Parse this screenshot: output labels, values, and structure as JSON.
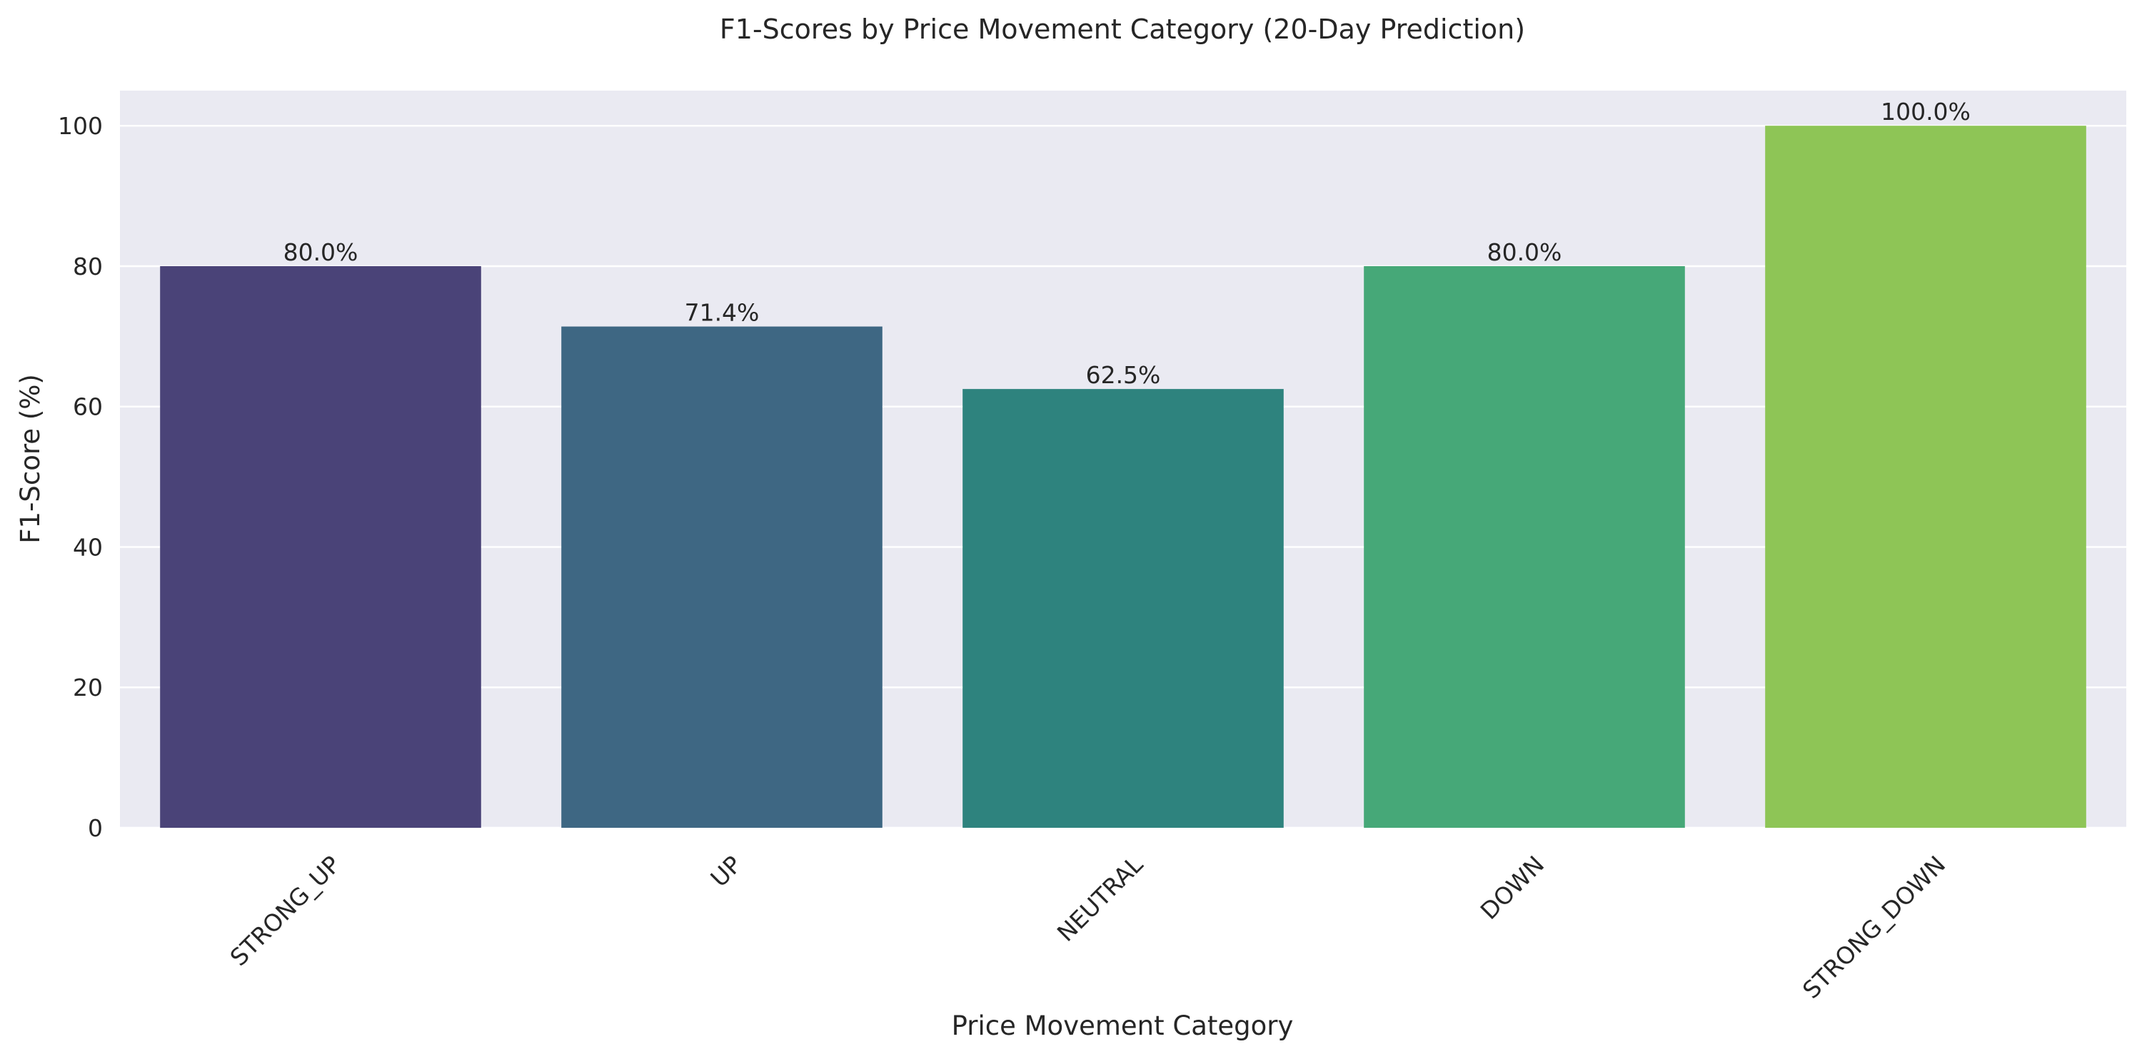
{
  "chart_data": {
    "type": "bar",
    "title": "F1-Scores by Price Movement Category (20-Day Prediction)",
    "xlabel": "Price Movement Category",
    "ylabel": "F1-Score (%)",
    "categories": [
      "STRONG_UP",
      "UP",
      "NEUTRAL",
      "DOWN",
      "STRONG_DOWN"
    ],
    "values": [
      80.0,
      71.4,
      62.5,
      80.0,
      100.0
    ],
    "value_labels": [
      "80.0%",
      "71.4%",
      "62.5%",
      "80.0%",
      "100.0%"
    ],
    "colors": [
      "#4a4378",
      "#3e6783",
      "#2e837e",
      "#46a878",
      "#8ec556"
    ],
    "ylim": [
      0,
      105
    ],
    "yticks": [
      0,
      20,
      40,
      60,
      80,
      100
    ],
    "grid": true,
    "legend": "none",
    "style": {
      "plot_background": "#eaeaf2",
      "grid_color": "#ffffff"
    }
  }
}
